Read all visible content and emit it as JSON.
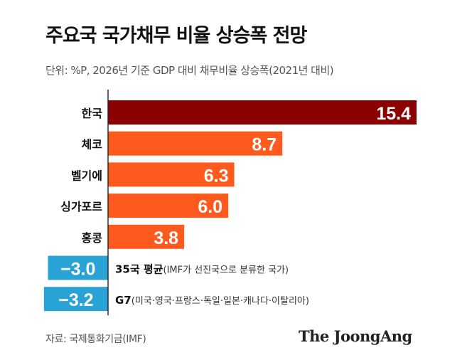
{
  "title": "주요국 국가채무 비율 상승폭 전망",
  "subtitle": "단위: %P, 2026년 기준 GDP 대비 채무비율 상승폭(2021년 대비)",
  "source": "자료: 국제통화기금(IMF)",
  "brand": "The JoongAng",
  "chart_data": {
    "type": "bar",
    "orientation": "horizontal",
    "xlim": [
      -3.2,
      15.4
    ],
    "bars": [
      {
        "label": "한국",
        "value": 15.4,
        "value_label": "15.4",
        "color": "#8b0000",
        "group": "country"
      },
      {
        "label": "체코",
        "value": 8.7,
        "value_label": "8.7",
        "color": "#fe5a1d",
        "group": "country"
      },
      {
        "label": "벨기에",
        "value": 6.3,
        "value_label": "6.3",
        "color": "#fe5a1d",
        "group": "country"
      },
      {
        "label": "싱가포르",
        "value": 6.0,
        "value_label": "6.0",
        "color": "#fe5a1d",
        "group": "country"
      },
      {
        "label": "홍콩",
        "value": 3.8,
        "value_label": "3.8",
        "color": "#fe5a1d",
        "group": "country"
      },
      {
        "label": "35국 평균",
        "note": "(IMF가 선진국으로 분류한 국가)",
        "value": -3.0,
        "value_label": "−3.0",
        "color": "#29a3d6",
        "group": "average"
      },
      {
        "label": "G7",
        "note": "(미국·영국·프랑스·독일·일본·캐나다·이탈리아)",
        "value": -3.2,
        "value_label": "−3.2",
        "color": "#29a3d6",
        "group": "average"
      }
    ]
  }
}
